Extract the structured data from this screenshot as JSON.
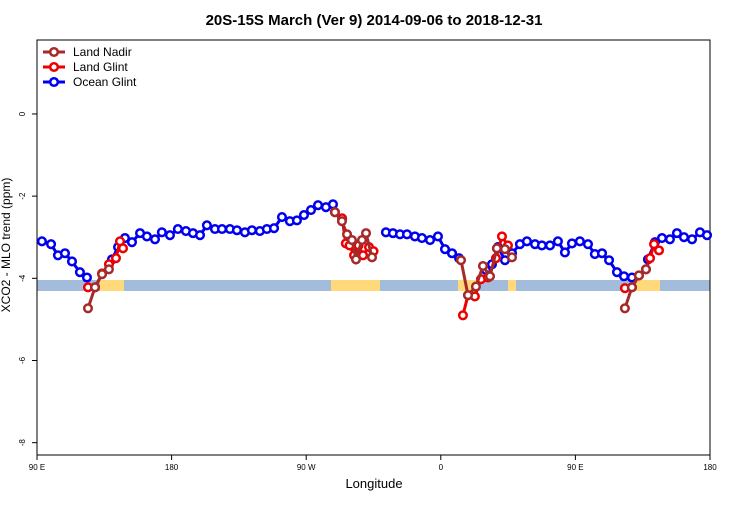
{
  "chart_data": {
    "type": "line",
    "title": "20S-15S March (Ver 9)   2014-09-06 to 2018-12-31",
    "x_label": "Longitude",
    "y_label": "XCO2 - MLO trend (ppm)",
    "xlim": [
      90,
      540
    ],
    "ylim": [
      -8.3,
      1.8
    ],
    "xticks": [
      {
        "value": 90,
        "label": "90 E"
      },
      180,
      {
        "value": 270,
        "label": "90 W"
      },
      {
        "value": 360,
        "label": "0"
      },
      {
        "value": 450,
        "label": "90 E"
      },
      {
        "value": 540,
        "label": "180"
      }
    ],
    "yticks": [
      0,
      -2,
      -4,
      -6,
      -8
    ],
    "legend": "top-left",
    "series": [
      {
        "name": "Land Nadir",
        "color": "#a52a2a",
        "x": [
          124.1,
          128.8,
          133.5,
          138.1,
          null,
          289.2,
          293.9,
          297.3,
          300.6,
          303.3,
          307.3,
          310,
          314,
          null,
          373.5,
          378.2,
          383.5,
          388.2,
          392.9,
          397.5,
          402.9,
          407.6,
          null,
          483.1,
          487.8,
          492.5,
          497.2
        ],
        "values": [
          -4.73,
          -4.22,
          -3.9,
          -3.78,
          null,
          -2.39,
          -2.61,
          -2.93,
          -3.07,
          -3.54,
          -3.07,
          -2.9,
          -3.49,
          null,
          -3.56,
          -4.41,
          -4.2,
          -3.7,
          -3.95,
          -3.27,
          -3.29,
          -3.49,
          null,
          -4.73,
          -4.22,
          -3.93,
          -3.78
        ]
      },
      {
        "name": "Land Glint",
        "color": "#ee0000",
        "x": [
          124.1,
          128.8,
          133.5,
          138.1,
          142.8,
          145.5,
          147.5,
          null,
          289.2,
          294,
          296.5,
          299,
          302,
          305,
          308,
          312,
          315,
          null,
          374.8,
          378.2,
          382.8,
          386.9,
          391.5,
          396.9,
          400.9,
          404.9,
          null,
          483.1,
          487.8,
          492.5,
          497.2,
          499.9,
          502.6,
          505.9
        ],
        "values": [
          -4.22,
          -4.22,
          -3.88,
          -3.66,
          -3.51,
          -3.1,
          -3.27,
          null,
          -2.39,
          -2.54,
          -3.15,
          -3.2,
          -3.44,
          -3.2,
          -3.44,
          -3.24,
          -3.34,
          null,
          -4.9,
          -4.41,
          -4.44,
          -4.02,
          -3.98,
          -3.51,
          -2.98,
          -3.2,
          null,
          -4.24,
          -4.22,
          -3.93,
          -3.78,
          -3.51,
          -3.17,
          -3.32
        ]
      },
      {
        "name": "Ocean Glint",
        "color": "#0000ee",
        "x": [
          93.3,
          99.4,
          104,
          108.7,
          113.4,
          118.7,
          123.4,
          null,
          140.1,
          144.2,
          148.8,
          153.5,
          158.9,
          163.5,
          168.9,
          173.5,
          178.9,
          184.2,
          189.6,
          194.3,
          199,
          203.6,
          209,
          213.7,
          219,
          223.7,
          229,
          233.7,
          239,
          243.7,
          248.5,
          253.8,
          259.1,
          263.8,
          268.5,
          273.2,
          277.9,
          283.2,
          287.9,
          null,
          323.3,
          328,
          332.7,
          337.4,
          342.7,
          347.4,
          352.8,
          358.1,
          362.8,
          367.5,
          372.2,
          null,
          390.2,
          394.2,
          398.2,
          402.9,
          407.6,
          412.9,
          417.6,
          423,
          427.6,
          433,
          438.3,
          443,
          447.7,
          453,
          458.4,
          463,
          467.8,
          472.5,
          477.8,
          482.5,
          487.8,
          null,
          498.5,
          503.2,
          507.9,
          513.2,
          517.9,
          522.6,
          528,
          533.3,
          538
        ],
        "values": [
          -3.1,
          -3.17,
          -3.44,
          -3.39,
          -3.59,
          -3.85,
          -3.98,
          null,
          -3.54,
          -3.24,
          -3.02,
          -3.12,
          -2.9,
          -2.98,
          -3.05,
          -2.88,
          -2.95,
          -2.8,
          -2.85,
          -2.9,
          -2.95,
          -2.71,
          -2.8,
          -2.8,
          -2.8,
          -2.83,
          -2.88,
          -2.83,
          -2.85,
          -2.8,
          -2.78,
          -2.51,
          -2.61,
          -2.59,
          -2.46,
          -2.34,
          -2.22,
          -2.27,
          -2.2,
          null,
          -2.88,
          -2.9,
          -2.93,
          -2.93,
          -2.98,
          -3.02,
          -3.07,
          -2.98,
          -3.29,
          -3.39,
          -3.51,
          null,
          -3.8,
          -3.66,
          -3.24,
          -3.56,
          -3.39,
          -3.17,
          -3.1,
          -3.17,
          -3.2,
          -3.2,
          -3.1,
          -3.37,
          -3.15,
          -3.1,
          -3.17,
          -3.41,
          -3.39,
          -3.56,
          -3.85,
          -3.95,
          -3.98,
          null,
          -3.54,
          -3.12,
          -3.02,
          -3.05,
          -2.9,
          -3,
          -3.05,
          -2.88,
          -2.95
        ]
      }
    ]
  }
}
